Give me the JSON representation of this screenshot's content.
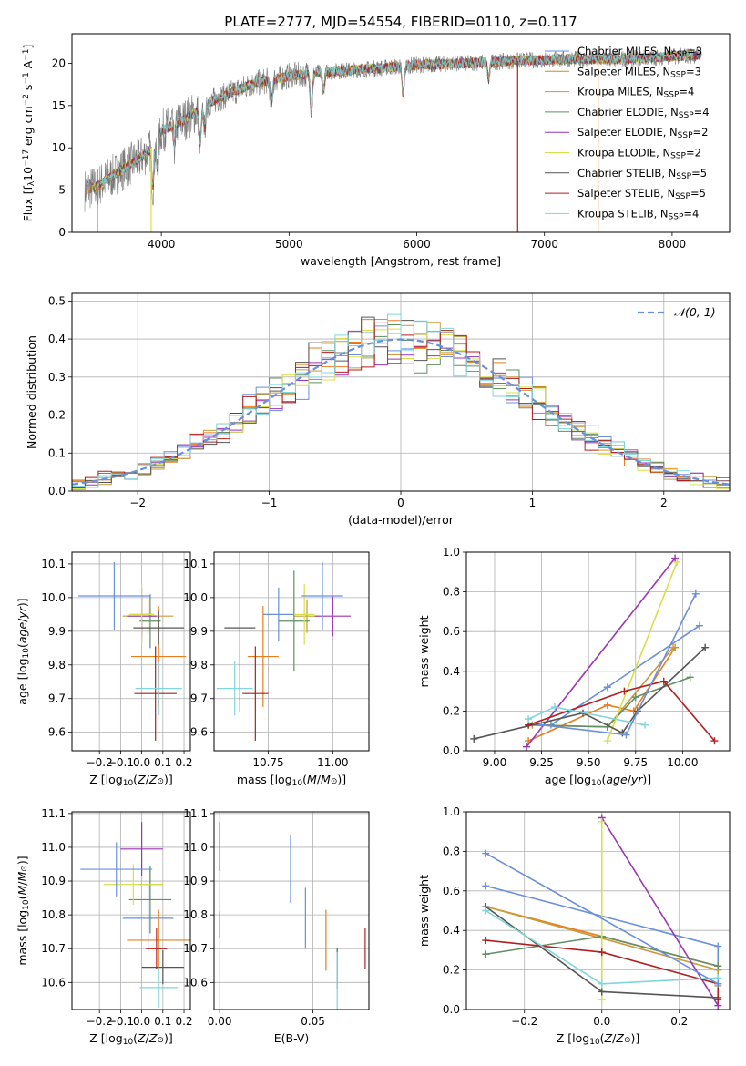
{
  "figure_title": "PLATE=2777, MJD=54554, FIBERID=0110, z=0.117",
  "models": [
    {
      "name": "Chabrier MILES, N<sub>SSP</sub>=3",
      "color": "#6a8fdd"
    },
    {
      "name": "Salpeter MILES, N<sub>SSP</sub>=3",
      "color": "#e87e1e"
    },
    {
      "name": "Kroupa MILES, N<sub>SSP</sub>=4",
      "color": "#c99a3b"
    },
    {
      "name": "Chabrier ELODIE, N<sub>SSP</sub>=4",
      "color": "#5f8f63"
    },
    {
      "name": "Salpeter ELODIE, N<sub>SSP</sub>=2",
      "color": "#9b35b5"
    },
    {
      "name": "Kroupa ELODIE, N<sub>SSP</sub>=2",
      "color": "#d7e04a"
    },
    {
      "name": "Chabrier STELIB, N<sub>SSP</sub>=5",
      "color": "#555555"
    },
    {
      "name": "Salpeter STELIB, N<sub>SSP</sub>=5",
      "color": "#b01f1f"
    },
    {
      "name": "Kroupa STELIB, N<sub>SSP</sub>=4",
      "color": "#7fd6dc"
    }
  ],
  "chart_data": [
    {
      "id": "spectrum",
      "type": "line",
      "xlabel": "wavelength [Angstrom, rest frame]",
      "ylabel": "Flux [f<sub>λ</sub>10<sup>−17</sup> erg cm<sup>−2</sup> s<sup>−1</sup> A<sup>−1</sup>]",
      "xlim": [
        3300,
        8450
      ],
      "ylim": [
        0,
        23.5
      ],
      "xticks": [
        4000,
        5000,
        6000,
        7000,
        8000
      ],
      "yticks": [
        0,
        5,
        10,
        15,
        20
      ],
      "legend": "upper right",
      "data_color": "#7a7a7a",
      "continuum_knots": {
        "x": [
          3400,
          3500,
          3700,
          3900,
          4000,
          4200,
          4400,
          4700,
          5000,
          5300,
          5600,
          6000,
          6400,
          6800,
          7200,
          7600,
          8000,
          8230
        ],
        "y": [
          5.0,
          5.5,
          7.5,
          9.5,
          12.0,
          13.5,
          15.5,
          17.5,
          18.5,
          19.0,
          19.3,
          19.8,
          20.0,
          20.3,
          20.5,
          20.5,
          20.8,
          21.0
        ]
      },
      "features": [
        {
          "x": 3934,
          "depth": 5.0
        },
        {
          "x": 3969,
          "depth": 4.0
        },
        {
          "x": 4102,
          "depth": 2.5
        },
        {
          "x": 4304,
          "depth": 4.0
        },
        {
          "x": 4340,
          "depth": 2.5
        },
        {
          "x": 4861,
          "depth": 3.0
        },
        {
          "x": 5175,
          "depth": 4.5
        },
        {
          "x": 5270,
          "depth": 2.0
        },
        {
          "x": 5893,
          "depth": 3.5
        },
        {
          "x": 6563,
          "depth": 2.0
        }
      ]
    },
    {
      "id": "residuals",
      "type": "histogram",
      "xlabel": "(data-model)/error",
      "ylabel": "Normed distribution",
      "xlim": [
        -2.5,
        2.5
      ],
      "ylim": [
        0,
        0.52
      ],
      "xticks": [
        -2,
        -1,
        0,
        1,
        2
      ],
      "yticks": [
        0,
        0.1,
        0.2,
        0.3,
        0.4,
        0.5
      ],
      "grid": true,
      "bin_width": 0.1,
      "gaussian_label": "𝒩(0, 1)",
      "gaussian_color": "#6a8fdd",
      "legend": "upper right"
    },
    {
      "id": "age_vs_Z",
      "type": "errorbar",
      "xlabel": "Z [log<sub>10</sub>(<tspan font-style='italic'>Z</tspan>/<tspan font-style='italic'>Z</tspan><tspan font-size='9'>⊙</tspan>)]",
      "ylabel": "age  [log<sub>10</sub>(<tspan font-style='italic'>age</tspan>/<tspan font-style='italic'>yr</tspan>)]",
      "xlim": [
        -0.33,
        0.23
      ],
      "ylim": [
        9.545,
        10.135
      ],
      "xticks": [
        -0.2,
        -0.1,
        0.0,
        0.1,
        0.2
      ],
      "yticks": [
        9.6,
        9.7,
        9.8,
        9.9,
        10.0,
        10.1
      ],
      "grid": true,
      "points": [
        {
          "x": 0.0,
          "y": 9.95,
          "xerr": 0.05,
          "yerr": 0.08
        },
        {
          "x": 0.08,
          "y": 9.825,
          "xerr": 0.13,
          "yerr": 0.15
        },
        {
          "x": 0.03,
          "y": 9.945,
          "xerr": 0.12,
          "yerr": 0.05
        },
        {
          "x": 0.04,
          "y": 9.93,
          "xerr": 0.05,
          "yerr": 0.08
        },
        {
          "x": 0.0,
          "y": 9.945,
          "xerr": 0.07,
          "yerr": 0.06
        },
        {
          "x": 0.0,
          "y": 9.95,
          "xerr": 0.06,
          "yerr": 0.09
        },
        {
          "x": 0.08,
          "y": 9.91,
          "xerr": 0.12,
          "yerr": 0.05
        },
        {
          "x": 0.065,
          "y": 9.715,
          "xerr": 0.1,
          "yerr": 0.14
        },
        {
          "x": 0.08,
          "y": 9.73,
          "xerr": 0.11,
          "yerr": 0.08
        },
        {
          "x": -0.13,
          "y": 10.005,
          "xerr": 0.17,
          "yerr": 0.1
        }
      ]
    },
    {
      "id": "age_vs_mass",
      "type": "errorbar",
      "xlabel": "mass [log<sub>10</sub>(<tspan font-style='italic'>M</tspan>/<tspan font-style='italic'>M</tspan><tspan font-size='9'>⊙</tspan>)]",
      "xlim": [
        10.54,
        11.14
      ],
      "ylim": [
        9.545,
        10.135
      ],
      "xticks": [
        10.75,
        11.0
      ],
      "yticks": [
        9.6,
        9.7,
        9.8,
        9.9,
        10.0,
        10.1
      ],
      "grid": true,
      "points": [
        {
          "x": 10.79,
          "y": 9.95,
          "xerr": 0.06,
          "yerr": 0.08
        },
        {
          "x": 10.73,
          "y": 9.825,
          "xerr": 0.06,
          "yerr": 0.15
        },
        {
          "x": 10.9,
          "y": 9.945,
          "xerr": 0.05,
          "yerr": 0.05
        },
        {
          "x": 10.85,
          "y": 9.93,
          "xerr": 0.06,
          "yerr": 0.15
        },
        {
          "x": 11.0,
          "y": 9.945,
          "xerr": 0.07,
          "yerr": 0.06
        },
        {
          "x": 10.89,
          "y": 9.95,
          "xerr": 0.04,
          "yerr": 0.09
        },
        {
          "x": 10.64,
          "y": 9.91,
          "xerr": 0.06,
          "yerr": 0.25
        },
        {
          "x": 10.7,
          "y": 9.715,
          "xerr": 0.05,
          "yerr": 0.14
        },
        {
          "x": 10.62,
          "y": 9.73,
          "xerr": 0.07,
          "yerr": 0.08
        },
        {
          "x": 10.96,
          "y": 10.005,
          "xerr": 0.08,
          "yerr": 0.1
        }
      ]
    },
    {
      "id": "weight_vs_age",
      "type": "line",
      "xlabel": "age  [log<sub>10</sub>(<tspan font-style='italic'>age</tspan>/<tspan font-style='italic'>yr</tspan>)]",
      "ylabel": "mass weight",
      "xlim": [
        8.85,
        10.25
      ],
      "ylim": [
        0,
        1
      ],
      "xticks": [
        9.0,
        9.25,
        9.5,
        9.75,
        10.0
      ],
      "yticks": [
        0,
        0.2,
        0.4,
        0.6,
        0.8,
        1.0
      ],
      "grid": true,
      "series": [
        {
          "x": [
            9.3,
            9.6,
            10.09
          ],
          "y": [
            0.13,
            0.32,
            0.63
          ]
        },
        {
          "x": [
            9.18,
            9.6,
            9.74,
            9.96
          ],
          "y": [
            0.05,
            0.23,
            0.2,
            0.52
          ]
        },
        {
          "x": [
            9.2,
            9.6,
            9.95
          ],
          "y": [
            0.13,
            0.12,
            0.52
          ]
        },
        {
          "x": [
            9.18,
            9.6,
            9.75,
            10.04
          ],
          "y": [
            0.13,
            0.12,
            0.27,
            0.37
          ]
        },
        {
          "x": [
            9.17,
            9.96
          ],
          "y": [
            0.02,
            0.97
          ]
        },
        {
          "x": [
            9.6,
            9.97
          ],
          "y": [
            0.05,
            0.95
          ]
        },
        {
          "x": [
            8.89,
            9.47,
            9.68,
            9.76,
            10.12
          ],
          "y": [
            0.06,
            0.19,
            0.09,
            0.2,
            0.52
          ]
        },
        {
          "x": [
            9.18,
            9.69,
            9.9,
            10.17
          ],
          "y": [
            0.13,
            0.3,
            0.35,
            0.05
          ]
        },
        {
          "x": [
            9.18,
            9.32,
            9.8
          ],
          "y": [
            0.16,
            0.22,
            0.13
          ]
        },
        {
          "x": [
            9.25,
            9.7,
            10.07
          ],
          "y": [
            0.13,
            0.08,
            0.79
          ]
        }
      ]
    },
    {
      "id": "mass_vs_Z",
      "type": "errorbar",
      "xlabel": "Z [log<sub>10</sub>(<tspan font-style='italic'>Z</tspan>/<tspan font-style='italic'>Z</tspan><tspan font-size='9'>⊙</tspan>)]",
      "ylabel": "mass [log<sub>10</sub>(<tspan font-style='italic'>M</tspan>/<tspan font-style='italic'>M</tspan><tspan font-size='9'>⊙</tspan>)]",
      "xlim": [
        -0.33,
        0.23
      ],
      "ylim": [
        10.52,
        11.105
      ],
      "xticks": [
        -0.2,
        -0.1,
        0.0,
        0.1,
        0.2
      ],
      "yticks": [
        10.6,
        10.7,
        10.8,
        10.9,
        11.0,
        11.1
      ],
      "grid": true,
      "points": [
        {
          "x": 0.03,
          "y": 10.79,
          "xerr": 0.12,
          "yerr": 0.1
        },
        {
          "x": 0.08,
          "y": 10.725,
          "xerr": 0.15,
          "yerr": 0.09
        },
        {
          "x": 0.04,
          "y": 10.89,
          "xerr": 0.06,
          "yerr": 0.05
        },
        {
          "x": 0.04,
          "y": 10.845,
          "xerr": 0.1,
          "yerr": 0.1
        },
        {
          "x": 0.0,
          "y": 10.995,
          "xerr": 0.1,
          "yerr": 0.08
        },
        {
          "x": -0.04,
          "y": 10.89,
          "xerr": 0.14,
          "yerr": 0.06
        },
        {
          "x": 0.1,
          "y": 10.645,
          "xerr": 0.1,
          "yerr": 0.05
        },
        {
          "x": 0.07,
          "y": 10.7,
          "xerr": 0.05,
          "yerr": 0.06
        },
        {
          "x": 0.08,
          "y": 10.585,
          "xerr": 0.09,
          "yerr": 0.06
        },
        {
          "x": -0.12,
          "y": 10.935,
          "xerr": 0.17,
          "yerr": 0.08
        }
      ]
    },
    {
      "id": "mass_vs_ebv",
      "type": "errorbar",
      "xlabel": "E(B-V)",
      "xlim": [
        -0.003,
        0.08
      ],
      "ylim": [
        10.52,
        11.105
      ],
      "xticks": [
        0.0,
        0.05
      ],
      "yticks": [
        10.6,
        10.7,
        10.8,
        10.9,
        11.0,
        11.1
      ],
      "grid": true,
      "points": [
        {
          "x": 0.046,
          "y": 10.79,
          "xerr": 0,
          "yerr": 0.09
        },
        {
          "x": 0.057,
          "y": 10.725,
          "xerr": 0,
          "yerr": 0.09
        },
        {
          "x": 0.0,
          "y": 10.89,
          "xerr": 0,
          "yerr": 0.04
        },
        {
          "x": 0.0,
          "y": 10.8,
          "xerr": 0,
          "yerr": 0.07
        },
        {
          "x": 0.0,
          "y": 10.995,
          "xerr": 0,
          "yerr": 0.08
        },
        {
          "x": 0.0,
          "y": 10.87,
          "xerr": 0,
          "yerr": 0.06
        },
        {
          "x": 0.063,
          "y": 10.64,
          "xerr": 0,
          "yerr": 0.06
        },
        {
          "x": 0.078,
          "y": 10.7,
          "xerr": 0,
          "yerr": 0.06
        },
        {
          "x": 0.063,
          "y": 10.6,
          "xerr": 0,
          "yerr": 0.09
        },
        {
          "x": 0.038,
          "y": 10.935,
          "xerr": 0,
          "yerr": 0.1
        }
      ]
    },
    {
      "id": "weight_vs_Z",
      "type": "line",
      "xlabel": "Z [log<sub>10</sub>(<tspan font-style='italic'>Z</tspan>/<tspan font-style='italic'>Z</tspan><tspan font-size='9'>⊙</tspan>)]",
      "ylabel": "mass weight",
      "xlim": [
        -0.35,
        0.33
      ],
      "ylim": [
        0,
        1
      ],
      "xticks": [
        -0.2,
        0.0,
        0.2
      ],
      "yticks": [
        0,
        0.2,
        0.4,
        0.6,
        0.8,
        1.0
      ],
      "grid": true,
      "series": [
        {
          "x": [
            -0.3,
            0.3,
            0.3
          ],
          "y": [
            0.625,
            0.32,
            0.2
          ]
        },
        {
          "x": [
            -0.3,
            0.3
          ],
          "y": [
            0.52,
            0.22
          ]
        },
        {
          "x": [
            -0.3,
            0.3,
            0.3
          ],
          "y": [
            0.52,
            0.2,
            0.12
          ]
        },
        {
          "x": [
            -0.3,
            0.0,
            0.3
          ],
          "y": [
            0.28,
            0.37,
            0.22
          ]
        },
        {
          "x": [
            0.0,
            0.3
          ],
          "y": [
            0.97,
            0.02
          ]
        },
        {
          "x": [
            0.0,
            0.0
          ],
          "y": [
            0.05,
            0.95
          ]
        },
        {
          "x": [
            -0.3,
            0.0,
            0.3
          ],
          "y": [
            0.52,
            0.09,
            0.06
          ]
        },
        {
          "x": [
            -0.3,
            0.0,
            0.3,
            0.3
          ],
          "y": [
            0.35,
            0.29,
            0.13,
            0.05
          ]
        },
        {
          "x": [
            -0.3,
            0.0,
            0.3
          ],
          "y": [
            0.5,
            0.13,
            0.16
          ]
        },
        {
          "x": [
            -0.3,
            0.3
          ],
          "y": [
            0.79,
            0.13
          ]
        }
      ]
    }
  ]
}
